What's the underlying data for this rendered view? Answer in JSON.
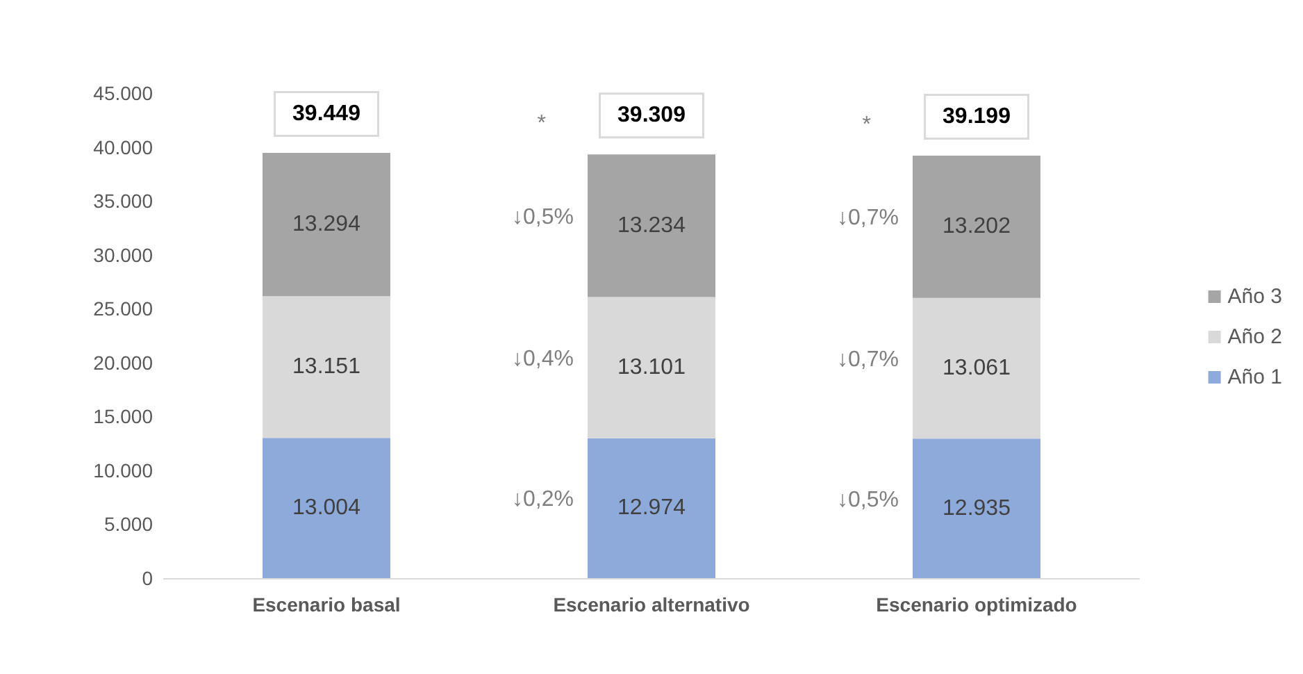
{
  "chart_data": {
    "type": "bar",
    "stacked": true,
    "categories": [
      "Escenario basal",
      "Escenario alternativo",
      "Escenario optimizado"
    ],
    "series": [
      {
        "name": "Año 1",
        "color": "#8eaadb",
        "values": [
          13004,
          12974,
          12935
        ],
        "value_labels": [
          "13.004",
          "12.974",
          "12.935"
        ]
      },
      {
        "name": "Año 2",
        "color": "#d9d9d9",
        "values": [
          13151,
          13101,
          13061
        ],
        "value_labels": [
          "13.151",
          "13.101",
          "13.061"
        ]
      },
      {
        "name": "Año 3",
        "color": "#a5a5a5",
        "values": [
          13294,
          13234,
          13202
        ],
        "value_labels": [
          "13.294",
          "13.234",
          "13.202"
        ]
      }
    ],
    "ylim": [
      0,
      45000
    ],
    "yticks": [
      {
        "value": 0,
        "label": "0"
      },
      {
        "value": 5000,
        "label": "5.000"
      },
      {
        "value": 10000,
        "label": "10.000"
      },
      {
        "value": 15000,
        "label": "15.000"
      },
      {
        "value": 20000,
        "label": "20.000"
      },
      {
        "value": 25000,
        "label": "25.000"
      },
      {
        "value": 30000,
        "label": "30.000"
      },
      {
        "value": 35000,
        "label": "35.000"
      },
      {
        "value": 40000,
        "label": "40.000"
      },
      {
        "value": 45000,
        "label": "45.000"
      }
    ],
    "totals": [
      "39.449",
      "39.309",
      "39.199"
    ],
    "annotations": [
      "*",
      "↓0,5%",
      "↓0,4%",
      "↓0,2%",
      "*",
      "↓0,7%",
      "↓0,7%",
      "↓0,5%"
    ],
    "grid": false,
    "legend": "right"
  }
}
